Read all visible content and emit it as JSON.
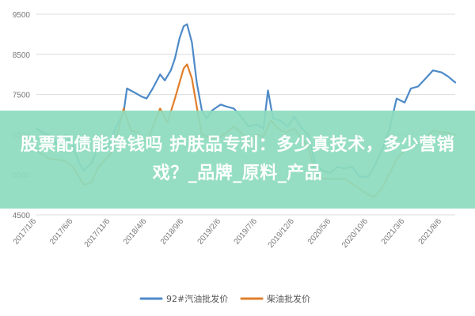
{
  "chart_data": {
    "type": "line",
    "ylim": [
      4500,
      9500
    ],
    "yticks": [
      4500,
      5500,
      6500,
      7500,
      8500,
      9500
    ],
    "xticks": [
      "2017/1/6",
      "2017/6/6",
      "2017/11/6",
      "2018/4/6",
      "2018/9/6",
      "2019/2/6",
      "2019/7/6",
      "2019/12/6",
      "2020/5/6",
      "2020/10/6",
      "2021/3/6",
      "2021/8/6"
    ],
    "xrange": [
      "2017/1/6",
      "2021/10/1"
    ],
    "grid": "horizontal",
    "legend_position": "bottom",
    "series": [
      {
        "name": "92#汽油批发价",
        "color": "#4e8ac8",
        "points": [
          [
            "2017/1/6",
            6650
          ],
          [
            "2017/2/1",
            6550
          ],
          [
            "2017/3/1",
            6480
          ],
          [
            "2017/4/1",
            6250
          ],
          [
            "2017/4/25",
            6450
          ],
          [
            "2017/5/10",
            6500
          ],
          [
            "2017/6/6",
            6200
          ],
          [
            "2017/7/1",
            5800
          ],
          [
            "2017/7/20",
            5600
          ],
          [
            "2017/8/20",
            5780
          ],
          [
            "2017/9/20",
            6200
          ],
          [
            "2017/10/20",
            6150
          ],
          [
            "2017/11/6",
            6300
          ],
          [
            "2017/12/1",
            6700
          ],
          [
            "2018/1/1",
            7050
          ],
          [
            "2018/1/15",
            7650
          ],
          [
            "2018/2/15",
            7550
          ],
          [
            "2018/3/15",
            7450
          ],
          [
            "2018/4/6",
            7400
          ],
          [
            "2018/5/1",
            7650
          ],
          [
            "2018/6/1",
            8000
          ],
          [
            "2018/6/20",
            7850
          ],
          [
            "2018/7/15",
            8100
          ],
          [
            "2018/8/1",
            8400
          ],
          [
            "2018/8/20",
            8900
          ],
          [
            "2018/9/6",
            9200
          ],
          [
            "2018/9/20",
            9250
          ],
          [
            "2018/10/10",
            8800
          ],
          [
            "2018/10/30",
            7800
          ],
          [
            "2018/11/20",
            7100
          ],
          [
            "2018/12/10",
            6900
          ],
          [
            "2019/1/1",
            7100
          ],
          [
            "2019/2/6",
            7250
          ],
          [
            "2019/3/1",
            7200
          ],
          [
            "2019/4/1",
            7150
          ],
          [
            "2019/5/1",
            6950
          ],
          [
            "2019/6/1",
            6700
          ],
          [
            "2019/7/6",
            6750
          ],
          [
            "2019/8/1",
            6650
          ],
          [
            "2019/8/20",
            7600
          ],
          [
            "2019/9/10",
            6900
          ],
          [
            "2019/10/10",
            6850
          ],
          [
            "2019/11/10",
            6700
          ],
          [
            "2019/12/6",
            6950
          ],
          [
            "2020/1/1",
            6700
          ],
          [
            "2020/2/1",
            6500
          ],
          [
            "2020/3/1",
            5800
          ],
          [
            "2020/4/1",
            5600
          ],
          [
            "2020/5/6",
            5550
          ],
          [
            "2020/6/1",
            5700
          ],
          [
            "2020/7/1",
            5650
          ],
          [
            "2020/8/1",
            5700
          ],
          [
            "2020/9/1",
            5450
          ],
          [
            "2020/10/6",
            5450
          ],
          [
            "2020/11/1",
            5700
          ],
          [
            "2020/12/1",
            6100
          ],
          [
            "2021/1/1",
            6600
          ],
          [
            "2021/2/1",
            7400
          ],
          [
            "2021/3/6",
            7300
          ],
          [
            "2021/4/1",
            7650
          ],
          [
            "2021/5/1",
            7700
          ],
          [
            "2021/6/1",
            7900
          ],
          [
            "2021/7/1",
            8100
          ],
          [
            "2021/8/6",
            8050
          ],
          [
            "2021/9/1",
            7950
          ],
          [
            "2021/10/1",
            7800
          ]
        ]
      },
      {
        "name": "柴油批发价",
        "color": "#e07e2b",
        "points": [
          [
            "2017/1/6",
            6100
          ],
          [
            "2017/3/1",
            5900
          ],
          [
            "2017/5/1",
            5850
          ],
          [
            "2017/6/6",
            5700
          ],
          [
            "2017/7/1",
            5450
          ],
          [
            "2017/7/20",
            5250
          ],
          [
            "2017/8/20",
            5300
          ],
          [
            "2017/9/20",
            5700
          ],
          [
            "2017/11/6",
            6000
          ],
          [
            "2017/12/1",
            6400
          ],
          [
            "2018/1/1",
            7150
          ],
          [
            "2018/2/1",
            6600
          ],
          [
            "2018/3/1",
            6550
          ],
          [
            "2018/4/6",
            6300
          ],
          [
            "2018/5/1",
            6700
          ],
          [
            "2018/6/1",
            7150
          ],
          [
            "2018/7/1",
            6800
          ],
          [
            "2018/8/1",
            7400
          ],
          [
            "2018/8/20",
            7800
          ],
          [
            "2018/9/6",
            8150
          ],
          [
            "2018/9/20",
            8250
          ],
          [
            "2018/10/10",
            7900
          ],
          [
            "2018/10/30",
            7200
          ],
          [
            "2018/11/20",
            6500
          ],
          [
            "2019/1/1",
            6400
          ],
          [
            "2019/2/6",
            6450
          ],
          [
            "2019/3/1",
            6550
          ],
          [
            "2019/4/1",
            6700
          ],
          [
            "2019/5/1",
            6550
          ],
          [
            "2019/6/1",
            6300
          ],
          [
            "2019/7/6",
            6500
          ],
          [
            "2019/8/1",
            6450
          ],
          [
            "2019/9/1",
            6850
          ],
          [
            "2019/10/1",
            6650
          ],
          [
            "2019/11/1",
            6550
          ],
          [
            "2019/12/6",
            6650
          ],
          [
            "2020/1/1",
            6450
          ],
          [
            "2020/2/1",
            6200
          ],
          [
            "2020/3/1",
            5600
          ],
          [
            "2020/4/1",
            5400
          ],
          [
            "2020/5/6",
            5400
          ],
          [
            "2020/7/1",
            5400
          ],
          [
            "2020/9/1",
            5150
          ],
          [
            "2020/10/6",
            5000
          ],
          [
            "2020/11/1",
            4950
          ],
          [
            "2020/12/1",
            5150
          ],
          [
            "2021/1/1",
            5500
          ],
          [
            "2021/2/1",
            5900
          ],
          [
            "2021/3/6",
            6100
          ],
          [
            "2021/4/1",
            6150
          ],
          [
            "2021/5/1",
            6300
          ],
          [
            "2021/6/1",
            6400
          ],
          [
            "2021/7/1",
            6600
          ],
          [
            "2021/8/6",
            6550
          ],
          [
            "2021/9/1",
            6550
          ],
          [
            "2021/10/1",
            6500
          ]
        ]
      }
    ]
  },
  "overlay": {
    "title": "股票配债能挣钱吗 护肤品专利：多少真技术，多少营销戏？_品牌_原料_产品"
  }
}
